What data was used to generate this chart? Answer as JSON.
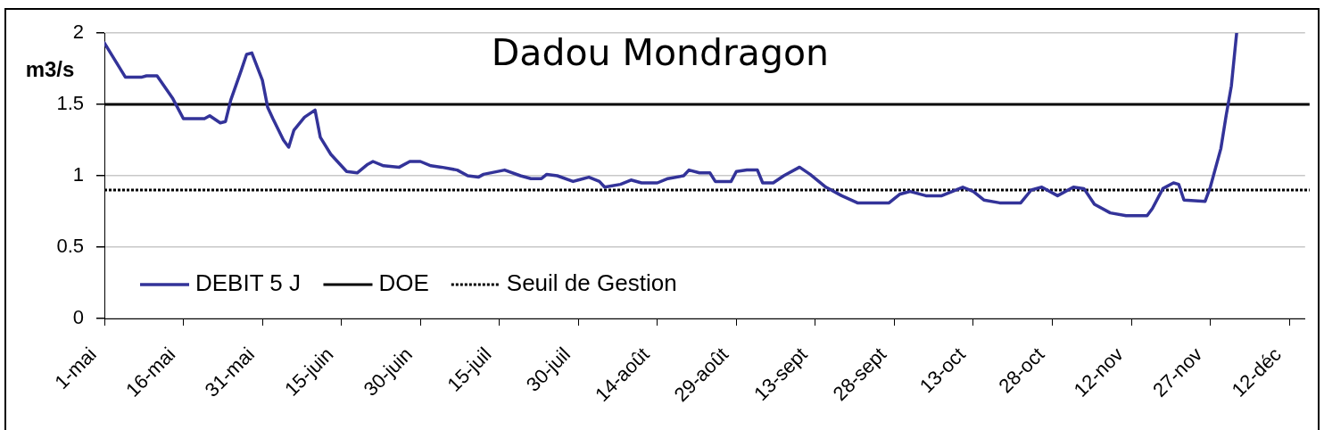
{
  "chart_data": {
    "type": "line",
    "title": "Dadou Mondragon",
    "ylabel": "m3/s",
    "x": [
      "--05-01",
      "--05-03",
      "--05-05",
      "--05-08",
      "--05-09",
      "--05-11",
      "--05-14",
      "--05-16",
      "--05-18",
      "--05-20",
      "--05-21",
      "--05-23",
      "--05-24",
      "--05-25",
      "--05-27",
      "--05-28",
      "--05-29",
      "--05-31",
      "--06-01",
      "--06-02",
      "--06-04",
      "--06-05",
      "--06-06",
      "--06-08",
      "--06-10",
      "--06-11",
      "--06-13",
      "--06-16",
      "--06-18",
      "--06-20",
      "--06-21",
      "--06-23",
      "--06-26",
      "--06-28",
      "--06-30",
      "--07-02",
      "--07-04",
      "--07-07",
      "--07-09",
      "--07-11",
      "--07-12",
      "--07-16",
      "--07-19",
      "--07-21",
      "--07-23",
      "--07-24",
      "--07-26",
      "--07-29",
      "--07-30",
      "--08-01",
      "--08-03",
      "--08-04",
      "--08-07",
      "--08-09",
      "--08-11",
      "--08-14",
      "--08-16",
      "--08-19",
      "--08-20",
      "--08-22",
      "--08-24",
      "--08-25",
      "--08-28",
      "--08-29",
      "--08-31",
      "--09-02",
      "--09-03",
      "--09-05",
      "--09-07",
      "--09-10",
      "--09-12",
      "--09-15",
      "--09-18",
      "--09-21",
      "--09-27",
      "--09-29",
      "--10-01",
      "--10-04",
      "--10-07",
      "--10-09",
      "--10-11",
      "--10-13",
      "--10-15",
      "--10-18",
      "--10-22",
      "--10-24",
      "--10-26",
      "--10-29",
      "--11-01",
      "--11-03",
      "--11-05",
      "--11-08",
      "--11-11",
      "--11-15",
      "--11-16",
      "--11-18",
      "--11-20",
      "--11-21",
      "--11-22",
      "--11-26",
      "--11-27",
      "--11-29",
      "--11-30",
      "--12-01",
      "--12-02"
    ],
    "series": [
      {
        "name": "DEBIT 5 J",
        "color": "#333399",
        "values": [
          1.93,
          1.81,
          1.69,
          1.69,
          1.7,
          1.7,
          1.54,
          1.4,
          1.4,
          1.4,
          1.42,
          1.37,
          1.38,
          1.53,
          1.74,
          1.85,
          1.86,
          1.67,
          1.48,
          1.4,
          1.25,
          1.2,
          1.32,
          1.41,
          1.46,
          1.27,
          1.15,
          1.03,
          1.02,
          1.08,
          1.1,
          1.07,
          1.06,
          1.1,
          1.1,
          1.07,
          1.06,
          1.04,
          1.0,
          0.99,
          1.01,
          1.04,
          1.0,
          0.98,
          0.98,
          1.01,
          1.0,
          0.96,
          0.97,
          0.99,
          0.96,
          0.92,
          0.94,
          0.97,
          0.95,
          0.95,
          0.98,
          1.0,
          1.04,
          1.02,
          1.02,
          0.96,
          0.96,
          1.03,
          1.04,
          1.04,
          0.95,
          0.95,
          1.0,
          1.06,
          1.01,
          0.92,
          0.86,
          0.81,
          0.81,
          0.87,
          0.89,
          0.86,
          0.86,
          0.89,
          0.92,
          0.89,
          0.83,
          0.81,
          0.81,
          0.9,
          0.92,
          0.86,
          0.92,
          0.91,
          0.8,
          0.74,
          0.72,
          0.72,
          0.77,
          0.91,
          0.95,
          0.94,
          0.83,
          0.82,
          0.92,
          1.19,
          1.42,
          1.63,
          2.0
        ]
      }
    ],
    "xlim": [
      "--05-01",
      "--12-15"
    ],
    "xticks": [
      {
        "value": "--05-01",
        "label": "1-mai"
      },
      {
        "value": "--05-16",
        "label": "16-mai"
      },
      {
        "value": "--05-31",
        "label": "31-mai"
      },
      {
        "value": "--06-15",
        "label": "15-juin"
      },
      {
        "value": "--06-30",
        "label": "30-juin"
      },
      {
        "value": "--07-15",
        "label": "15-juil"
      },
      {
        "value": "--07-30",
        "label": "30-juil"
      },
      {
        "value": "--08-14",
        "label": "14-août"
      },
      {
        "value": "--08-29",
        "label": "29-août"
      },
      {
        "value": "--09-13",
        "label": "13-sept"
      },
      {
        "value": "--09-28",
        "label": "28-sept"
      },
      {
        "value": "--10-13",
        "label": "13-oct"
      },
      {
        "value": "--10-28",
        "label": "28-oct"
      },
      {
        "value": "--11-12",
        "label": "12-nov"
      },
      {
        "value": "--11-27",
        "label": "27-nov"
      },
      {
        "value": "--12-12",
        "label": "12-déc"
      }
    ],
    "ylim": [
      0,
      2
    ],
    "yticks": [
      0,
      0.5,
      1,
      1.5,
      2
    ],
    "grid": "y",
    "legend": "bottom left",
    "ref_lines": [
      {
        "axis": "y",
        "value": 1.5,
        "label": "DOE",
        "color": "#000000",
        "line_style": "solid"
      },
      {
        "axis": "y",
        "value": 0.9,
        "label": "Seuil de Gestion",
        "color": "#000000",
        "line_style": "dotted"
      }
    ]
  }
}
